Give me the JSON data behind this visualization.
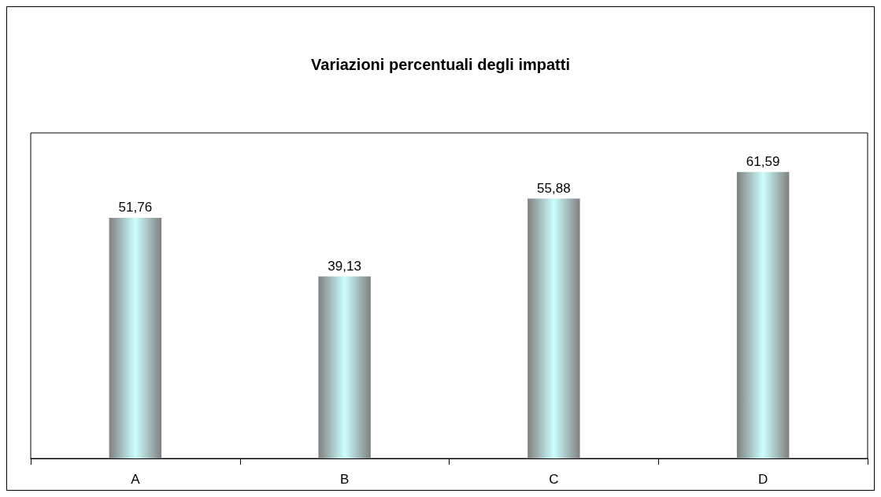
{
  "chart_data": {
    "type": "bar",
    "title": "Variazioni percentuali degli impatti",
    "categories": [
      "A",
      "B",
      "C",
      "D"
    ],
    "values": [
      51.76,
      39.13,
      55.88,
      61.59
    ],
    "value_labels": [
      "51,76",
      "39,13",
      "55,88",
      "61,59"
    ],
    "color": "#ccffff",
    "grid": false
  }
}
